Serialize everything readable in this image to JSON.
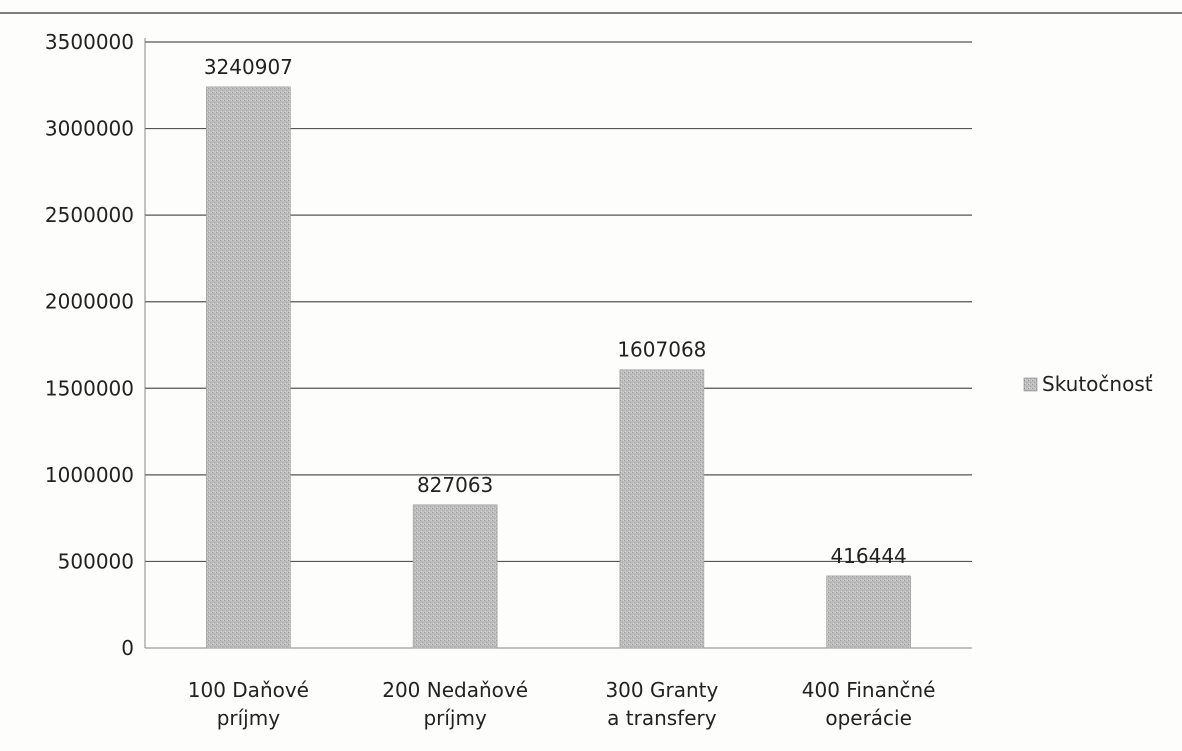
{
  "chart_data": {
    "type": "bar",
    "categories": [
      [
        "100  Daňové",
        "príjmy"
      ],
      [
        "200 Nedaňové",
        "príjmy"
      ],
      [
        "300 Granty",
        "a transfery"
      ],
      [
        "400 Finančné",
        "operácie"
      ]
    ],
    "series": [
      {
        "name": "Skutočnosť",
        "values": [
          3240907,
          827063,
          1607068,
          416444
        ],
        "color": "#b8b8b8"
      }
    ],
    "data_labels": [
      "3240907",
      "827063",
      "1607068",
      "416444"
    ],
    "y_ticks": [
      "0",
      "500000",
      "1000000",
      "1500000",
      "2000000",
      "2500000",
      "3000000",
      "3500000"
    ],
    "ylim": [
      0,
      3500000
    ],
    "grid": true,
    "legend_position": "right",
    "title": "",
    "xlabel": "",
    "ylabel": ""
  }
}
